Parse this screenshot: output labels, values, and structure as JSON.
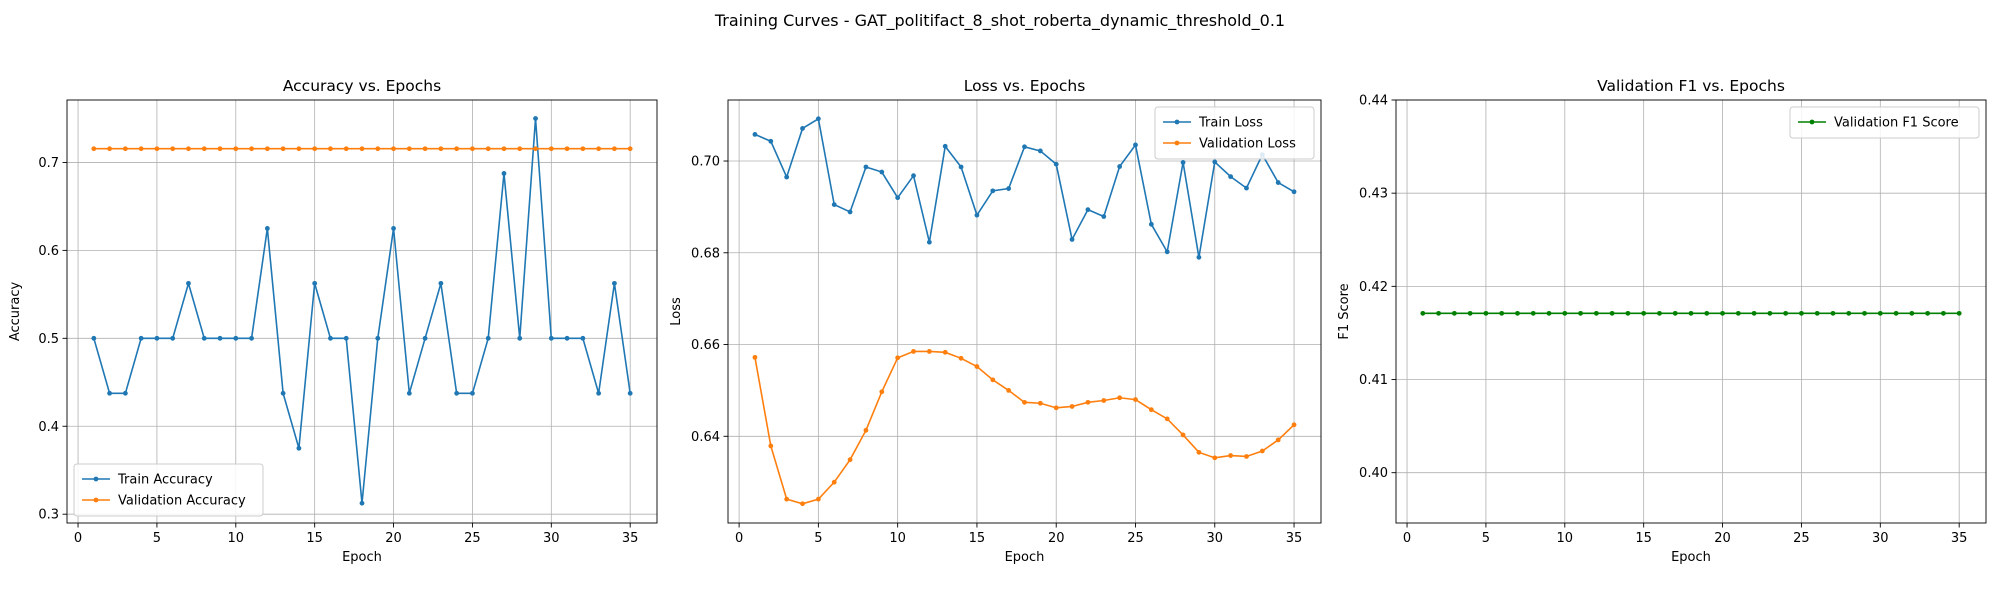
{
  "suptitle": "Training Curves - GAT_politifact_8_shot_roberta_dynamic_threshold_0.1",
  "colors": {
    "blue": "#1f77b4",
    "orange": "#ff7f0e",
    "green": "#008000",
    "grid": "#b0b0b0"
  },
  "chart_data": [
    {
      "type": "line",
      "title": "Accuracy vs. Epochs",
      "xlabel": "Epoch",
      "ylabel": "Accuracy",
      "xlim": [
        -0.7,
        36.7
      ],
      "ylim": [
        0.29,
        0.771
      ],
      "xticks": [
        0,
        5,
        10,
        15,
        20,
        25,
        30,
        35
      ],
      "yticks": [
        0.3,
        0.4,
        0.5,
        0.6,
        0.7
      ],
      "ytick_labels": [
        "0.3",
        "0.4",
        "0.5",
        "0.6",
        "0.7"
      ],
      "grid": true,
      "legend_position": "lower-left",
      "x": [
        1,
        2,
        3,
        4,
        5,
        6,
        7,
        8,
        9,
        10,
        11,
        12,
        13,
        14,
        15,
        16,
        17,
        18,
        19,
        20,
        21,
        22,
        23,
        24,
        25,
        26,
        27,
        28,
        29,
        30,
        31,
        32,
        33,
        34,
        35
      ],
      "series": [
        {
          "name": "Train Accuracy",
          "color": "#1f77b4",
          "values": [
            0.5,
            0.4375,
            0.4375,
            0.5,
            0.5,
            0.5,
            0.5625,
            0.5,
            0.5,
            0.5,
            0.5,
            0.625,
            0.4375,
            0.375,
            0.5625,
            0.5,
            0.5,
            0.3125,
            0.5,
            0.625,
            0.4375,
            0.5,
            0.5625,
            0.4375,
            0.4375,
            0.5,
            0.6875,
            0.5,
            0.75,
            0.5,
            0.5,
            0.5,
            0.4375,
            0.5625,
            0.4375
          ]
        },
        {
          "name": "Validation Accuracy",
          "color": "#ff7f0e",
          "values": [
            0.7156,
            0.7156,
            0.7156,
            0.7156,
            0.7156,
            0.7156,
            0.7156,
            0.7156,
            0.7156,
            0.7156,
            0.7156,
            0.7156,
            0.7156,
            0.7156,
            0.7156,
            0.7156,
            0.7156,
            0.7156,
            0.7156,
            0.7156,
            0.7156,
            0.7156,
            0.7156,
            0.7156,
            0.7156,
            0.7156,
            0.7156,
            0.7156,
            0.7156,
            0.7156,
            0.7156,
            0.7156,
            0.7156,
            0.7156,
            0.7156
          ]
        }
      ]
    },
    {
      "type": "line",
      "title": "Loss vs. Epochs",
      "xlabel": "Epoch",
      "ylabel": "Loss",
      "xlim": [
        -0.7,
        36.7
      ],
      "ylim": [
        0.6211,
        0.7133
      ],
      "xticks": [
        0,
        5,
        10,
        15,
        20,
        25,
        30,
        35
      ],
      "yticks": [
        0.64,
        0.66,
        0.68,
        0.7
      ],
      "ytick_labels": [
        "0.64",
        "0.66",
        "0.68",
        "0.70"
      ],
      "grid": true,
      "legend_position": "top-right",
      "x": [
        1,
        2,
        3,
        4,
        5,
        6,
        7,
        8,
        9,
        10,
        11,
        12,
        13,
        14,
        15,
        16,
        17,
        18,
        19,
        20,
        21,
        22,
        23,
        24,
        25,
        26,
        27,
        28,
        29,
        30,
        31,
        32,
        33,
        34,
        35
      ],
      "series": [
        {
          "name": "Train Loss",
          "color": "#1f77b4",
          "values": [
            0.7058,
            0.7043,
            0.6965,
            0.7071,
            0.7092,
            0.6905,
            0.6889,
            0.6987,
            0.6976,
            0.692,
            0.6968,
            0.6823,
            0.7032,
            0.6987,
            0.6882,
            0.6935,
            0.694,
            0.7031,
            0.7022,
            0.6993,
            0.6829,
            0.6894,
            0.6879,
            0.6988,
            0.7035,
            0.6862,
            0.6802,
            0.6997,
            0.679,
            0.6998,
            0.6966,
            0.6941,
            0.7014,
            0.6953,
            0.6933
          ]
        },
        {
          "name": "Validation Loss",
          "color": "#ff7f0e",
          "values": [
            0.6572,
            0.6379,
            0.6263,
            0.6253,
            0.6263,
            0.63,
            0.6349,
            0.6413,
            0.6497,
            0.6571,
            0.6585,
            0.6585,
            0.6583,
            0.657,
            0.6552,
            0.6523,
            0.65,
            0.6474,
            0.6472,
            0.6462,
            0.6465,
            0.6474,
            0.6478,
            0.6484,
            0.648,
            0.6458,
            0.6438,
            0.6403,
            0.6365,
            0.6353,
            0.6358,
            0.6356,
            0.6368,
            0.6392,
            0.6425
          ]
        }
      ]
    },
    {
      "type": "line",
      "title": "Validation F1 vs. Epochs",
      "xlabel": "Epoch",
      "ylabel": "F1 Score",
      "xlim": [
        -0.7,
        36.7
      ],
      "ylim": [
        0.3946,
        0.44
      ],
      "xticks": [
        0,
        5,
        10,
        15,
        20,
        25,
        30,
        35
      ],
      "yticks": [
        0.4,
        0.41,
        0.42,
        0.43,
        0.44
      ],
      "ytick_labels": [
        "0.40",
        "0.41",
        "0.42",
        "0.43",
        "0.44"
      ],
      "grid": true,
      "legend_position": "top-right",
      "x": [
        1,
        2,
        3,
        4,
        5,
        6,
        7,
        8,
        9,
        10,
        11,
        12,
        13,
        14,
        15,
        16,
        17,
        18,
        19,
        20,
        21,
        22,
        23,
        24,
        25,
        26,
        27,
        28,
        29,
        30,
        31,
        32,
        33,
        34,
        35
      ],
      "series": [
        {
          "name": "Validation F1 Score",
          "color": "#008000",
          "values": [
            0.4171,
            0.4171,
            0.4171,
            0.4171,
            0.4171,
            0.4171,
            0.4171,
            0.4171,
            0.4171,
            0.4171,
            0.4171,
            0.4171,
            0.4171,
            0.4171,
            0.4171,
            0.4171,
            0.4171,
            0.4171,
            0.4171,
            0.4171,
            0.4171,
            0.4171,
            0.4171,
            0.4171,
            0.4171,
            0.4171,
            0.4171,
            0.4171,
            0.4171,
            0.4171,
            0.4171,
            0.4171,
            0.4171,
            0.4171,
            0.4171
          ]
        }
      ]
    }
  ]
}
